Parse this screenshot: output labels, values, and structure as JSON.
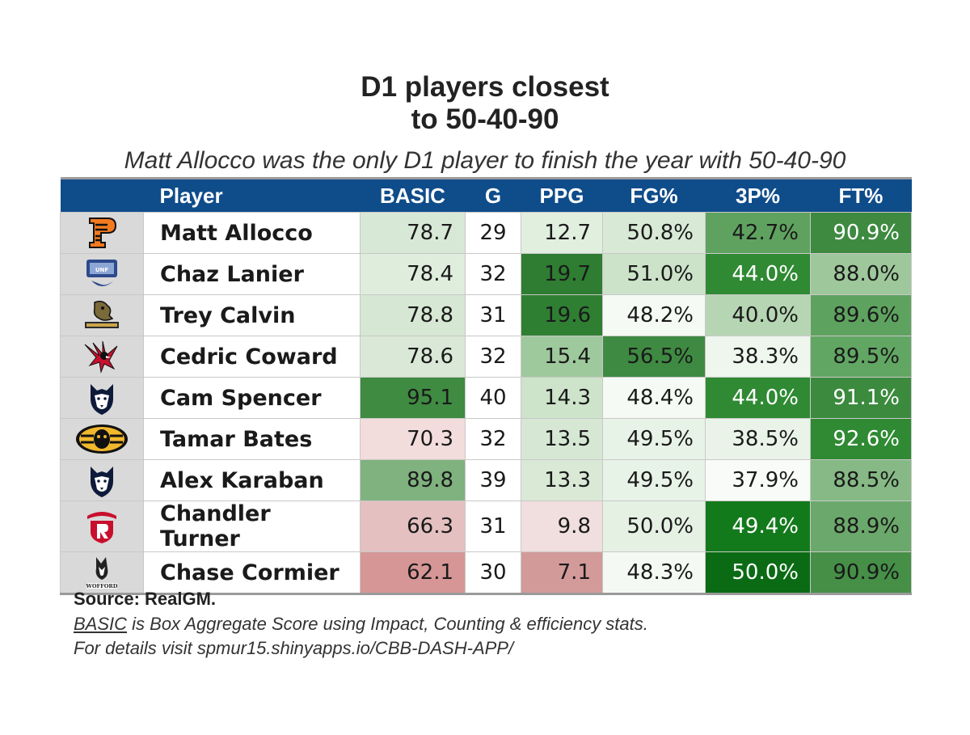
{
  "title_line1": "D1 players closest",
  "title_line2": "to 50-40-90",
  "subtitle": "Matt Allocco was the only D1 player to finish the year with 50-40-90",
  "source": "Source: RealGM.",
  "note_term": "BASIC",
  "note_rest": " is Box Aggregate Score using Impact, Counting & efficiency stats.",
  "note_line2": "For details visit spmur15.shinyapps.io/CBB-DASH-APP/",
  "columns": [
    "Player",
    "BASIC",
    "G",
    "PPG",
    "FG%",
    "3P%",
    "FT%"
  ],
  "chart_data": {
    "type": "table",
    "title": "D1 players closest to 50-40-90",
    "columns": [
      "Player",
      "BASIC",
      "G",
      "PPG",
      "FG%",
      "3P%",
      "FT%"
    ],
    "rows": [
      {
        "logo": "princeton-tiger-logo",
        "player": "Matt Allocco",
        "basic": "78.7",
        "g": "29",
        "ppg": "12.7",
        "fg": "50.8%",
        "tp": "42.7%",
        "ft": "90.9%"
      },
      {
        "logo": "north-florida-logo",
        "player": "Chaz Lanier",
        "basic": "78.4",
        "g": "32",
        "ppg": "19.7",
        "fg": "51.0%",
        "tp": "44.0%",
        "ft": "88.0%"
      },
      {
        "logo": "wright-state-raider-logo",
        "player": "Trey Calvin",
        "basic": "78.8",
        "g": "31",
        "ppg": "19.6",
        "fg": "48.2%",
        "tp": "40.0%",
        "ft": "89.6%"
      },
      {
        "logo": "eastern-washington-eagle-logo",
        "player": "Cedric Coward",
        "basic": "78.6",
        "g": "32",
        "ppg": "15.4",
        "fg": "56.5%",
        "tp": "38.3%",
        "ft": "89.5%"
      },
      {
        "logo": "uconn-husky-logo",
        "player": "Cam Spencer",
        "basic": "95.1",
        "g": "40",
        "ppg": "14.3",
        "fg": "48.4%",
        "tp": "44.0%",
        "ft": "91.1%"
      },
      {
        "logo": "missouri-tiger-logo",
        "player": "Tamar Bates",
        "basic": "70.3",
        "g": "32",
        "ppg": "13.5",
        "fg": "49.5%",
        "tp": "38.5%",
        "ft": "92.6%"
      },
      {
        "logo": "uconn-husky-logo",
        "player": "Alex Karaban",
        "basic": "89.8",
        "g": "39",
        "ppg": "13.3",
        "fg": "49.5%",
        "tp": "37.9%",
        "ft": "88.5%"
      },
      {
        "logo": "radford-logo",
        "player": "Chandler Turner",
        "basic": "66.3",
        "g": "31",
        "ppg": "9.8",
        "fg": "50.0%",
        "tp": "49.4%",
        "ft": "88.9%"
      },
      {
        "logo": "wofford-terrier-logo",
        "player": "Chase Cormier",
        "basic": "62.1",
        "g": "30",
        "ppg": "7.1",
        "fg": "48.3%",
        "tp": "50.0%",
        "ft": "90.9%"
      }
    ],
    "cell_colors": [
      {
        "basic": "#d8e8d6",
        "ppg": "#e1efdf",
        "fg": "#d8ead6",
        "tp": "#5fa25f",
        "ft": "#3d8a40"
      },
      {
        "basic": "#dfeddd",
        "ppg": "#2e7d32",
        "fg": "#cce3c9",
        "tp": "#2f8a33",
        "ft": "#9ec89b"
      },
      {
        "basic": "#d6e7d3",
        "ppg": "#2f7f33",
        "fg": "#f5faf4",
        "tp": "#b6d6b3",
        "ft": "#5ea25f"
      },
      {
        "basic": "#dae9d7",
        "ppg": "#9ec99c",
        "fg": "#3f8a42",
        "tp": "#eef6ed",
        "ft": "#62a663"
      },
      {
        "basic": "#3e8b41",
        "ppg": "#cde3ca",
        "fg": "#f5faf4",
        "tp": "#2f8a33",
        "ft": "#3b8a3e"
      },
      {
        "basic": "#f2dcdc",
        "ppg": "#d6e8d4",
        "fg": "#e8f3e7",
        "tp": "#e9f3e8",
        "ft": "#2f8a33"
      },
      {
        "basic": "#7fb27e",
        "ppg": "#d9e9d6",
        "fg": "#e8f3e7",
        "tp": "#f8fbf7",
        "ft": "#86b985"
      },
      {
        "basic": "#e4c0c0",
        "ppg": "#f1dede",
        "fg": "#e5f1e3",
        "tp": "#137a1c",
        "ft": "#6ba86b"
      },
      {
        "basic": "#d69696",
        "ppg": "#d39a9a",
        "fg": "#f4f9f3",
        "tp": "#0b6b14",
        "ft": "#458f47"
      }
    ]
  }
}
